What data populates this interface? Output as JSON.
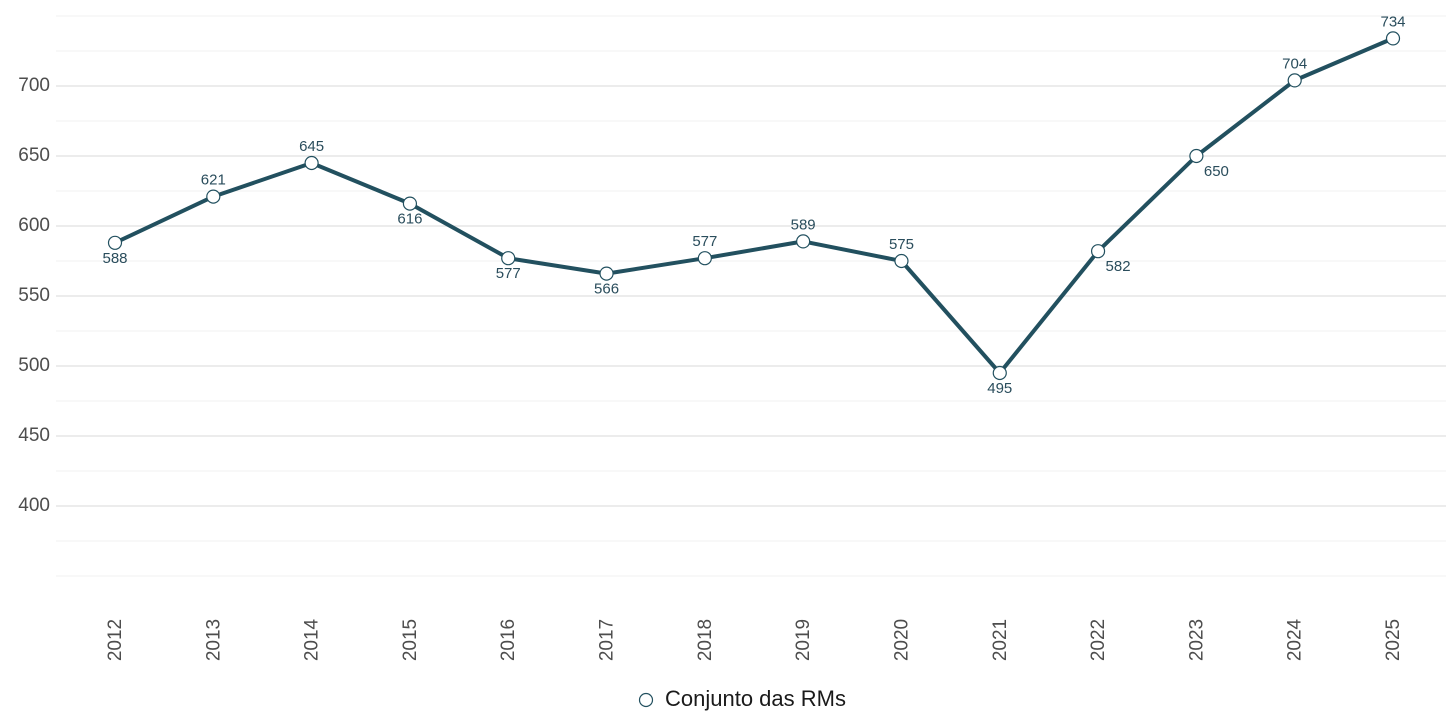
{
  "chart_data": {
    "type": "line",
    "x": [
      2012,
      2013,
      2014,
      2015,
      2016,
      2017,
      2018,
      2019,
      2020,
      2021,
      2022,
      2023,
      2024,
      2025
    ],
    "series": [
      {
        "name": "Conjunto das RMs",
        "color": "#22505f",
        "values": [
          588,
          621,
          645,
          616,
          577,
          566,
          577,
          589,
          575,
          495,
          582,
          650,
          704,
          734
        ]
      }
    ],
    "ylim": [
      350,
      750
    ],
    "yticks": [
      400,
      450,
      500,
      550,
      600,
      650,
      700
    ],
    "minor_yticks": [
      350,
      375,
      425,
      475,
      525,
      575,
      625,
      675,
      725,
      750
    ],
    "grid": true,
    "legend": "bottom",
    "data_labels": true
  }
}
